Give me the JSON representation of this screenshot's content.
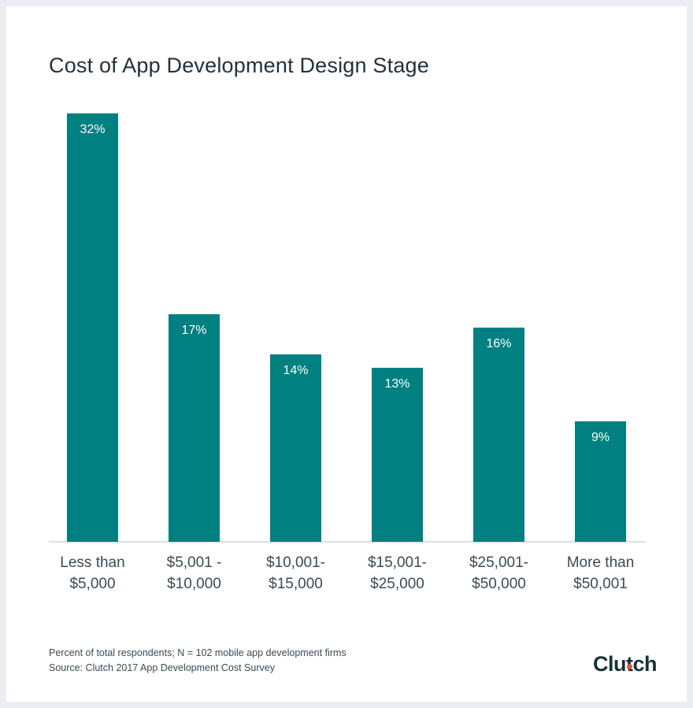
{
  "chart_data": {
    "type": "bar",
    "title": "Cost of App Development Design Stage",
    "categories": [
      [
        "Less than",
        "$5,000"
      ],
      [
        "$5,001 -",
        "$10,000"
      ],
      [
        "$10,001-",
        "$15,000"
      ],
      [
        "$15,001-",
        "$25,000"
      ],
      [
        "$25,001-",
        "$50,000"
      ],
      [
        "More than",
        "$50,001"
      ]
    ],
    "values": [
      32,
      17,
      14,
      13,
      16,
      9
    ],
    "value_labels": [
      "32%",
      "17%",
      "14%",
      "13%",
      "16%",
      "9%"
    ],
    "ylim": [
      0,
      32
    ],
    "grid": false,
    "legend": "none",
    "bar_color": "#008080"
  },
  "footnote": {
    "line1": "Percent of total respondents; N = 102 mobile app development firms",
    "line2": "Source: Clutch 2017 App Development Cost Survey"
  },
  "logo": {
    "text": "Clutch",
    "accent_color": "#e4543b"
  }
}
